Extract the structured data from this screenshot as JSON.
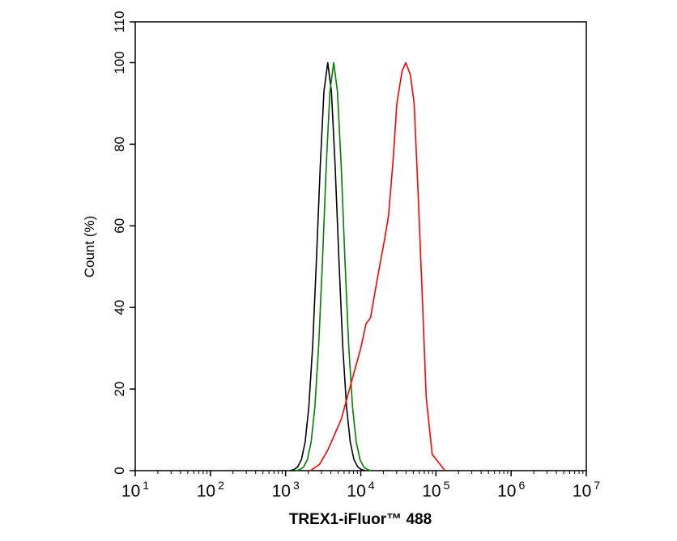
{
  "chart_data": {
    "type": "line",
    "title": "",
    "xlabel": "TREX1-iFluor™ 488",
    "ylabel": "Count  (%)",
    "xscale": "log10",
    "xlim_log10": [
      1,
      7
    ],
    "ylim": [
      0,
      110
    ],
    "x_ticks": [
      {
        "base": "10",
        "exp": "1"
      },
      {
        "base": "10",
        "exp": "2"
      },
      {
        "base": "10",
        "exp": "3"
      },
      {
        "base": "10",
        "exp": "4"
      },
      {
        "base": "10",
        "exp": "5"
      },
      {
        "base": "10",
        "exp": "6"
      },
      {
        "base": "10",
        "exp": "7"
      }
    ],
    "y_ticks": [
      "0",
      "20",
      "40",
      "60",
      "80",
      "100",
      "110"
    ],
    "grid": false,
    "legend": "none",
    "series": [
      {
        "name": "black",
        "color": "#000000",
        "log10_x": [
          3.06,
          3.11,
          3.16,
          3.21,
          3.26,
          3.31,
          3.36,
          3.41,
          3.46,
          3.51,
          3.56,
          3.61,
          3.66,
          3.71,
          3.76,
          3.81,
          3.86,
          3.91,
          3.96,
          4.01,
          4.06
        ],
        "y": [
          0,
          0.25,
          0.9,
          2.7,
          7,
          15.7,
          30.6,
          51.4,
          74.4,
          92.9,
          100,
          92.9,
          74.4,
          51.4,
          30.6,
          15.7,
          7,
          2.7,
          0.9,
          0.25,
          0
        ]
      },
      {
        "name": "green",
        "color": "#007f00",
        "log10_x": [
          3.14,
          3.19,
          3.24,
          3.29,
          3.34,
          3.39,
          3.44,
          3.49,
          3.54,
          3.59,
          3.64,
          3.69,
          3.74,
          3.79,
          3.84,
          3.89,
          3.94,
          3.99,
          4.04,
          4.09,
          4.14
        ],
        "y": [
          0,
          0.25,
          0.9,
          2.7,
          7,
          15.7,
          30.6,
          51.4,
          74.4,
          92.9,
          100,
          92.9,
          74.4,
          51.4,
          30.6,
          15.7,
          7,
          2.7,
          0.9,
          0.25,
          0
        ]
      },
      {
        "name": "red",
        "color": "#ff0000",
        "log10_x": [
          3.33,
          3.45,
          3.56,
          3.74,
          3.85,
          4.0,
          4.07,
          4.13,
          4.22,
          4.32,
          4.37,
          4.43,
          4.48,
          4.55,
          4.6,
          4.66,
          4.71,
          4.76,
          4.82,
          4.87,
          4.95,
          5.12
        ],
        "y": [
          0,
          1.5,
          5,
          12.6,
          20,
          30,
          36,
          37.5,
          47,
          57,
          62.5,
          76,
          90,
          98,
          100,
          97,
          90,
          69,
          42,
          18,
          4,
          0
        ]
      }
    ]
  }
}
